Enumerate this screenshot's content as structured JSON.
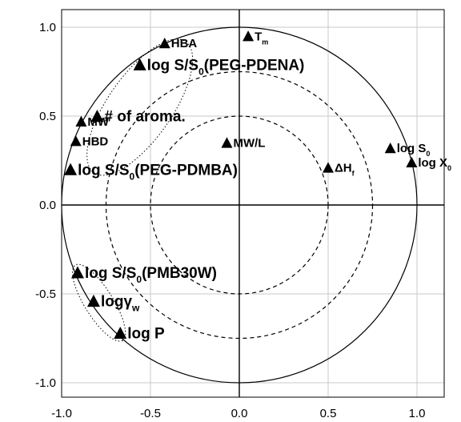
{
  "chart_data": {
    "type": "scatter",
    "title": "",
    "xlabel": "",
    "ylabel": "",
    "xlim": [
      -1.1,
      1.1
    ],
    "ylim": [
      -1.1,
      1.1
    ],
    "grid": true,
    "legend": "none",
    "xticks": [
      {
        "value": -1.0,
        "label": "-1.0"
      },
      {
        "value": -0.5,
        "label": "-0.5"
      },
      {
        "value": 0.0,
        "label": "0.0"
      },
      {
        "value": 0.5,
        "label": "0.5"
      },
      {
        "value": 1.0,
        "label": "1.0"
      }
    ],
    "yticks": [
      {
        "value": 1.0,
        "label": "1.0"
      },
      {
        "value": 0.5,
        "label": "0.5"
      },
      {
        "value": 0.0,
        "label": "0.0"
      },
      {
        "value": -0.5,
        "label": "-0.5"
      },
      {
        "value": -1.0,
        "label": "-1.0"
      }
    ],
    "reference_circles": [
      {
        "radius": 1.0,
        "style": "solid"
      },
      {
        "radius": 0.75,
        "style": "dashed"
      },
      {
        "radius": 0.5,
        "style": "dashed"
      }
    ],
    "points": [
      {
        "x": -0.42,
        "y": 0.91,
        "label": "HBA",
        "size": "small"
      },
      {
        "x": 0.05,
        "y": 0.95,
        "label": "T",
        "sub": "m",
        "size": "small"
      },
      {
        "x": -0.56,
        "y": 0.79,
        "label": "log S/S",
        "sub": "0",
        "tail": "(PEG-PDENA)",
        "size": "large"
      },
      {
        "x": -0.89,
        "y": 0.47,
        "label": "MW",
        "size": "small"
      },
      {
        "x": -0.8,
        "y": 0.5,
        "label": "# of aroma.",
        "size": "large"
      },
      {
        "x": -0.92,
        "y": 0.36,
        "label": "HBD",
        "size": "small"
      },
      {
        "x": -0.95,
        "y": 0.2,
        "label": "log S/S",
        "sub": "0",
        "tail": "(PEG-PDMBA)",
        "size": "large"
      },
      {
        "x": -0.07,
        "y": 0.35,
        "label": "MW/L",
        "size": "small"
      },
      {
        "x": 0.5,
        "y": 0.21,
        "label": "ΔH",
        "sub": "f",
        "size": "small"
      },
      {
        "x": 0.85,
        "y": 0.32,
        "label": "log S",
        "sub": "0",
        "size": "small"
      },
      {
        "x": 0.97,
        "y": 0.24,
        "label": "log X",
        "sub": "0",
        "size": "small"
      },
      {
        "x": -0.91,
        "y": -0.38,
        "label": "log S/S",
        "sub": "0",
        "tail": "(PMB30W)",
        "size": "large"
      },
      {
        "x": -0.82,
        "y": -0.54,
        "label": "logγ",
        "sub": "w",
        "size": "large"
      },
      {
        "x": -0.67,
        "y": -0.72,
        "label": "log P",
        "size": "large"
      }
    ],
    "clusters": [
      {
        "cx": -0.56,
        "cy": 0.55,
        "rx": 0.45,
        "ry": 0.18,
        "angle": -55
      },
      {
        "cx": -0.79,
        "cy": -0.55,
        "rx": 0.25,
        "ry": 0.08,
        "angle": 58
      }
    ]
  }
}
